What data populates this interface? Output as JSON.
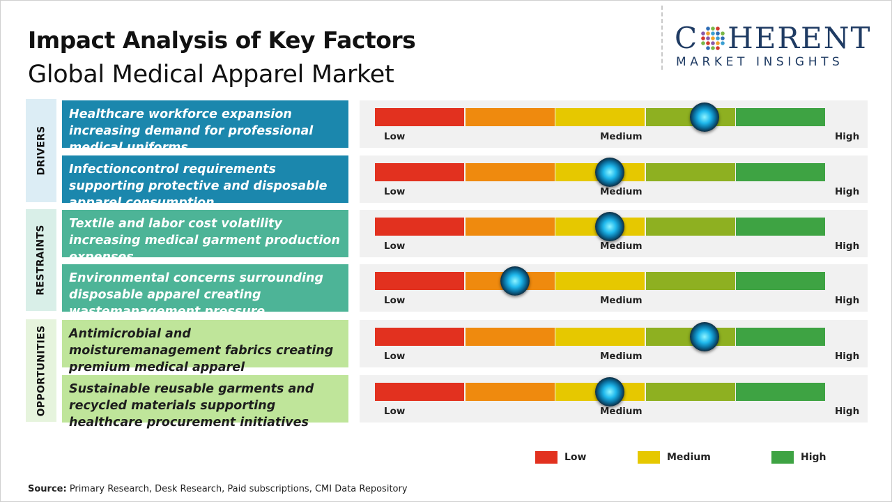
{
  "header": {
    "title": "Impact Analysis of Key Factors",
    "subtitle": "Global Medical Apparel Market"
  },
  "logo": {
    "word_start": "C",
    "word_end": "HERENT",
    "tagline": "MARKET INSIGHTS"
  },
  "categories": [
    {
      "label": "DRIVERS",
      "color": "#dcedf5"
    },
    {
      "label": "RESTRAINTS",
      "color": "#d9efe8"
    },
    {
      "label": "OPPORTUNITIES",
      "color": "#e6f4dd"
    }
  ],
  "scale_labels": {
    "low": "Low",
    "medium": "Medium",
    "high": "High"
  },
  "colors": {
    "segments": [
      "#e2311f",
      "#ef8a0e",
      "#e6c800",
      "#8eb021",
      "#3ea343"
    ],
    "driver_box": "#1b87ad",
    "restraint_box": "#4db497",
    "opportunity_box": "#bfe59a"
  },
  "chart_data": {
    "type": "gauge",
    "scale": [
      "Low",
      "Medium",
      "High"
    ],
    "rows": [
      {
        "category": "DRIVERS",
        "factor": "Healthcare workforce expansion increasing demand for professional medical uniforms",
        "impact": 0.73
      },
      {
        "category": "DRIVERS",
        "factor": "Infectioncontrol requirements supporting protective and disposable apparel consumption",
        "impact": 0.52
      },
      {
        "category": "RESTRAINTS",
        "factor": "Textile and labor cost volatility increasing medical garment production expenses",
        "impact": 0.52
      },
      {
        "category": "RESTRAINTS",
        "factor": "Environmental concerns surrounding disposable apparel creating wastemanagement pressure",
        "impact": 0.31
      },
      {
        "category": "OPPORTUNITIES",
        "factor": "Antimicrobial and moisturemanagement fabrics creating premium medical apparel opportunities",
        "impact": 0.73
      },
      {
        "category": "OPPORTUNITIES",
        "factor": "Sustainable reusable garments and recycled materials supporting healthcare procurement initiatives",
        "impact": 0.52
      }
    ]
  },
  "legend": [
    {
      "label": "Low",
      "color": "#e2311f"
    },
    {
      "label": "Medium",
      "color": "#e6c800"
    },
    {
      "label": "High",
      "color": "#3ea343"
    }
  ],
  "source": {
    "label": "Source:",
    "text": " Primary Research, Desk Research, Paid subscriptions, CMI Data Repository"
  }
}
